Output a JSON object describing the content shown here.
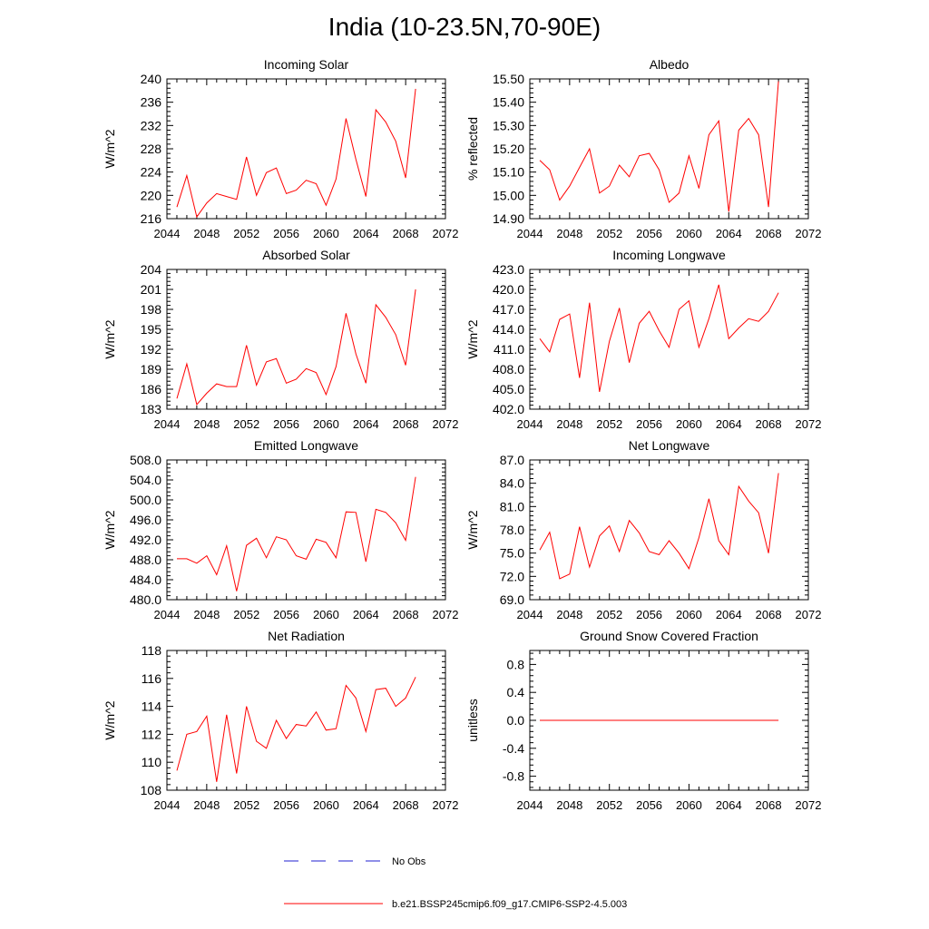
{
  "title": "India (10-23.5N,70-90E)",
  "colors": {
    "model": "#ff0000",
    "obs": "#1f1fd0",
    "axis": "#000000"
  },
  "legend": [
    {
      "label": "No Obs",
      "style": "dashed",
      "color": "#1f1fd0"
    },
    {
      "label": "b.e21.BSSP245cmip6.f09_g17.CMIP6-SSP2-4.5.003",
      "style": "solid",
      "color": "#ff0000"
    }
  ],
  "chart_data": [
    {
      "type": "line",
      "title": "Incoming Solar",
      "ylabel": "W/m^2",
      "xlim": [
        2044,
        2072
      ],
      "ylim": [
        216,
        240
      ],
      "xticks": [
        2044,
        2048,
        2052,
        2056,
        2060,
        2064,
        2068,
        2072
      ],
      "yticks": [
        216,
        220,
        224,
        228,
        232,
        236,
        240
      ],
      "ytick_labels": [
        "216",
        "220",
        "224",
        "228",
        "232",
        "236",
        "240"
      ],
      "x": [
        2045,
        2046,
        2047,
        2048,
        2049,
        2050,
        2051,
        2052,
        2053,
        2054,
        2055,
        2056,
        2057,
        2058,
        2059,
        2060,
        2061,
        2062,
        2063,
        2064,
        2065,
        2066,
        2067,
        2068,
        2069
      ],
      "series": [
        {
          "name": "b.e21.BSSP245cmip6.f09_g17.CMIP6-SSP2-4.5.003",
          "values": [
            218.0,
            223.4,
            216.3,
            218.7,
            220.3,
            219.8,
            219.3,
            226.6,
            220.0,
            223.9,
            224.7,
            220.3,
            220.9,
            222.6,
            222.0,
            218.3,
            222.8,
            233.2,
            226.2,
            219.8,
            234.7,
            232.6,
            229.3,
            223.0,
            238.3
          ]
        }
      ]
    },
    {
      "type": "line",
      "title": "Albedo",
      "ylabel": "% reflected",
      "xlim": [
        2044,
        2072
      ],
      "ylim": [
        14.9,
        15.5
      ],
      "xticks": [
        2044,
        2048,
        2052,
        2056,
        2060,
        2064,
        2068,
        2072
      ],
      "yticks": [
        14.9,
        15.0,
        15.1,
        15.2,
        15.3,
        15.4,
        15.5
      ],
      "ytick_labels": [
        "14.90",
        "15.00",
        "15.10",
        "15.20",
        "15.30",
        "15.40",
        "15.50"
      ],
      "x": [
        2045,
        2046,
        2047,
        2048,
        2049,
        2050,
        2051,
        2052,
        2053,
        2054,
        2055,
        2056,
        2057,
        2058,
        2059,
        2060,
        2061,
        2062,
        2063,
        2064,
        2065,
        2066,
        2067,
        2068,
        2069
      ],
      "series": [
        {
          "name": "b.e21.BSSP245cmip6.f09_g17.CMIP6-SSP2-4.5.003",
          "values": [
            15.15,
            15.11,
            14.98,
            15.04,
            15.12,
            15.2,
            15.01,
            15.04,
            15.13,
            15.08,
            15.17,
            15.18,
            15.11,
            14.97,
            15.01,
            15.17,
            15.03,
            15.26,
            15.32,
            14.93,
            15.28,
            15.33,
            15.26,
            14.95,
            15.49
          ]
        }
      ]
    },
    {
      "type": "line",
      "title": "Absorbed Solar",
      "ylabel": "W/m^2",
      "xlim": [
        2044,
        2072
      ],
      "ylim": [
        183,
        204
      ],
      "xticks": [
        2044,
        2048,
        2052,
        2056,
        2060,
        2064,
        2068,
        2072
      ],
      "yticks": [
        183,
        186,
        189,
        192,
        195,
        198,
        201,
        204
      ],
      "ytick_labels": [
        "183",
        "186",
        "189",
        "192",
        "195",
        "198",
        "201",
        "204"
      ],
      "x": [
        2045,
        2046,
        2047,
        2048,
        2049,
        2050,
        2051,
        2052,
        2053,
        2054,
        2055,
        2056,
        2057,
        2058,
        2059,
        2060,
        2061,
        2062,
        2063,
        2064,
        2065,
        2066,
        2067,
        2068,
        2069
      ],
      "series": [
        {
          "name": "b.e21.BSSP245cmip6.f09_g17.CMIP6-SSP2-4.5.003",
          "values": [
            184.6,
            189.8,
            183.7,
            185.4,
            186.8,
            186.4,
            186.4,
            192.6,
            186.6,
            190.1,
            190.6,
            186.9,
            187.5,
            189.1,
            188.5,
            185.2,
            189.4,
            197.4,
            191.3,
            186.9,
            198.7,
            196.8,
            194.2,
            189.6,
            201.0
          ]
        }
      ]
    },
    {
      "type": "line",
      "title": "Incoming Longwave",
      "ylabel": "W/m^2",
      "xlim": [
        2044,
        2072
      ],
      "ylim": [
        402,
        423
      ],
      "xticks": [
        2044,
        2048,
        2052,
        2056,
        2060,
        2064,
        2068,
        2072
      ],
      "yticks": [
        402,
        405,
        408,
        411,
        414,
        417,
        420,
        423
      ],
      "ytick_labels": [
        "402.0",
        "405.0",
        "408.0",
        "411.0",
        "414.0",
        "417.0",
        "420.0",
        "423.0"
      ],
      "x": [
        2045,
        2046,
        2047,
        2048,
        2049,
        2050,
        2051,
        2052,
        2053,
        2054,
        2055,
        2056,
        2057,
        2058,
        2059,
        2060,
        2061,
        2062,
        2063,
        2064,
        2065,
        2066,
        2067,
        2068,
        2069
      ],
      "series": [
        {
          "name": "b.e21.BSSP245cmip6.f09_g17.CMIP6-SSP2-4.5.003",
          "values": [
            412.6,
            410.6,
            415.5,
            416.3,
            406.7,
            418.0,
            404.6,
            412.2,
            417.2,
            409.0,
            414.9,
            416.7,
            413.8,
            411.3,
            417.0,
            418.3,
            411.3,
            415.6,
            420.7,
            412.6,
            414.2,
            415.6,
            415.2,
            416.7,
            419.5
          ]
        }
      ]
    },
    {
      "type": "line",
      "title": "Emitted Longwave",
      "ylabel": "W/m^2",
      "xlim": [
        2044,
        2072
      ],
      "ylim": [
        480,
        508
      ],
      "xticks": [
        2044,
        2048,
        2052,
        2056,
        2060,
        2064,
        2068,
        2072
      ],
      "yticks": [
        480,
        484,
        488,
        492,
        496,
        500,
        504,
        508
      ],
      "ytick_labels": [
        "480.0",
        "484.0",
        "488.0",
        "492.0",
        "496.0",
        "500.0",
        "504.0",
        "508.0"
      ],
      "x": [
        2045,
        2046,
        2047,
        2048,
        2049,
        2050,
        2051,
        2052,
        2053,
        2054,
        2055,
        2056,
        2057,
        2058,
        2059,
        2060,
        2061,
        2062,
        2063,
        2064,
        2065,
        2066,
        2067,
        2068,
        2069
      ],
      "series": [
        {
          "name": "b.e21.BSSP245cmip6.f09_g17.CMIP6-SSP2-4.5.003",
          "values": [
            488.2,
            488.2,
            487.3,
            488.8,
            485.0,
            490.8,
            481.7,
            490.9,
            492.3,
            488.4,
            492.6,
            492.0,
            488.8,
            488.1,
            492.1,
            491.5,
            488.4,
            497.6,
            497.5,
            487.6,
            498.1,
            497.5,
            495.4,
            491.9,
            504.6
          ]
        }
      ]
    },
    {
      "type": "line",
      "title": "Net Longwave",
      "ylabel": "W/m^2",
      "xlim": [
        2044,
        2072
      ],
      "ylim": [
        69,
        87
      ],
      "xticks": [
        2044,
        2048,
        2052,
        2056,
        2060,
        2064,
        2068,
        2072
      ],
      "yticks": [
        69,
        72,
        75,
        78,
        81,
        84,
        87
      ],
      "ytick_labels": [
        "69.0",
        "72.0",
        "75.0",
        "78.0",
        "81.0",
        "84.0",
        "87.0"
      ],
      "x": [
        2045,
        2046,
        2047,
        2048,
        2049,
        2050,
        2051,
        2052,
        2053,
        2054,
        2055,
        2056,
        2057,
        2058,
        2059,
        2060,
        2061,
        2062,
        2063,
        2064,
        2065,
        2066,
        2067,
        2068,
        2069
      ],
      "series": [
        {
          "name": "b.e21.BSSP245cmip6.f09_g17.CMIP6-SSP2-4.5.003",
          "values": [
            75.4,
            77.7,
            71.7,
            72.3,
            78.4,
            73.2,
            77.2,
            78.5,
            75.2,
            79.2,
            77.6,
            75.2,
            74.8,
            76.6,
            75.0,
            73.0,
            77.0,
            82.0,
            76.6,
            74.8,
            83.6,
            81.7,
            80.2,
            75.0,
            85.3
          ]
        }
      ]
    },
    {
      "type": "line",
      "title": "Net Radiation",
      "ylabel": "W/m^2",
      "xlim": [
        2044,
        2072
      ],
      "ylim": [
        108,
        118
      ],
      "xticks": [
        2044,
        2048,
        2052,
        2056,
        2060,
        2064,
        2068,
        2072
      ],
      "yticks": [
        108,
        110,
        112,
        114,
        116,
        118
      ],
      "ytick_labels": [
        "108",
        "110",
        "112",
        "114",
        "116",
        "118"
      ],
      "x": [
        2045,
        2046,
        2047,
        2048,
        2049,
        2050,
        2051,
        2052,
        2053,
        2054,
        2055,
        2056,
        2057,
        2058,
        2059,
        2060,
        2061,
        2062,
        2063,
        2064,
        2065,
        2066,
        2067,
        2068,
        2069
      ],
      "series": [
        {
          "name": "b.e21.BSSP245cmip6.f09_g17.CMIP6-SSP2-4.5.003",
          "values": [
            109.4,
            112.0,
            112.2,
            113.3,
            108.6,
            113.4,
            109.2,
            114.0,
            111.5,
            111.0,
            113.0,
            111.7,
            112.7,
            112.6,
            113.6,
            112.3,
            112.4,
            115.5,
            114.6,
            112.2,
            115.2,
            115.3,
            114.0,
            114.6,
            116.1
          ]
        }
      ]
    },
    {
      "type": "line",
      "title": "Ground Snow Covered Fraction",
      "ylabel": "unitless",
      "xlim": [
        2044,
        2072
      ],
      "ylim": [
        -1.0,
        1.0
      ],
      "xticks": [
        2044,
        2048,
        2052,
        2056,
        2060,
        2064,
        2068,
        2072
      ],
      "yticks": [
        -0.8,
        -0.4,
        0.0,
        0.4,
        0.8
      ],
      "ytick_labels": [
        "-0.8",
        "-0.4",
        "0.0",
        "0.4",
        "0.8"
      ],
      "x": [
        2045,
        2069
      ],
      "series": [
        {
          "name": "b.e21.BSSP245cmip6.f09_g17.CMIP6-SSP2-4.5.003",
          "values": [
            0.0,
            0.0
          ]
        }
      ]
    }
  ]
}
